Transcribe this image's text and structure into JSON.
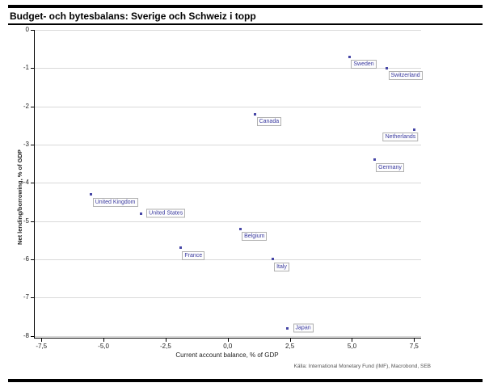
{
  "header": {
    "title": "Budget- och bytesbalans: Sverige och Schweiz i topp"
  },
  "footer": {
    "source": "Källa: International Monetary Fund (IMF), Macrobond, SEB"
  },
  "chart_data": {
    "type": "scatter",
    "title": "Budget- och bytesbalans: Sverige och Schweiz i topp",
    "xlabel": "Current account balance, % of GDP",
    "ylabel": "Net lending/borrowing, % of GDP",
    "xlim": [
      -7.8,
      7.75
    ],
    "ylim": [
      -8.05,
      0
    ],
    "grid": "horizontal",
    "legend": "none",
    "x_ticks": [
      {
        "value": -7.5,
        "label": "-7,5"
      },
      {
        "value": -5.0,
        "label": "-5,0"
      },
      {
        "value": -2.5,
        "label": "-2,5"
      },
      {
        "value": 0.0,
        "label": "0,0"
      },
      {
        "value": 2.5,
        "label": "2,5"
      },
      {
        "value": 5.0,
        "label": "5,0"
      },
      {
        "value": 7.5,
        "label": "7,5"
      }
    ],
    "y_ticks": [
      {
        "value": 0,
        "label": "0"
      },
      {
        "value": -1,
        "label": "-1"
      },
      {
        "value": -2,
        "label": "-2"
      },
      {
        "value": -3,
        "label": "-3"
      },
      {
        "value": -4,
        "label": "-4"
      },
      {
        "value": -5,
        "label": "-5"
      },
      {
        "value": -6,
        "label": "-6"
      },
      {
        "value": -7,
        "label": "-7"
      },
      {
        "value": -8,
        "label": "-8"
      }
    ],
    "points": [
      {
        "name": "Sweden",
        "x": 4.9,
        "y": -0.7,
        "label_placement": "below-right"
      },
      {
        "name": "Switzerland",
        "x": 6.4,
        "y": -1.0,
        "label_placement": "below-right"
      },
      {
        "name": "Canada",
        "x": 1.1,
        "y": -2.2,
        "label_placement": "below-right"
      },
      {
        "name": "Netherlands",
        "x": 7.5,
        "y": -2.6,
        "label_placement": "below-left"
      },
      {
        "name": "Germany",
        "x": 5.9,
        "y": -3.4,
        "label_placement": "below-right"
      },
      {
        "name": "United Kingdom",
        "x": -5.5,
        "y": -4.3,
        "label_placement": "below-right"
      },
      {
        "name": "United States",
        "x": -3.5,
        "y": -4.8,
        "label_placement": "right"
      },
      {
        "name": "Belgium",
        "x": 0.5,
        "y": -5.2,
        "label_placement": "below-right"
      },
      {
        "name": "France",
        "x": -1.9,
        "y": -5.7,
        "label_placement": "below-right"
      },
      {
        "name": "Italy",
        "x": 1.8,
        "y": -6.0,
        "label_placement": "below-right"
      },
      {
        "name": "Japan",
        "x": 2.4,
        "y": -7.8,
        "label_placement": "right"
      }
    ],
    "colors": {
      "marker": "#4747a6",
      "label_text": "#3a3aa0",
      "label_border": "#b0b0b0",
      "grid": "#d9d9d9",
      "axis": "#000000"
    }
  }
}
